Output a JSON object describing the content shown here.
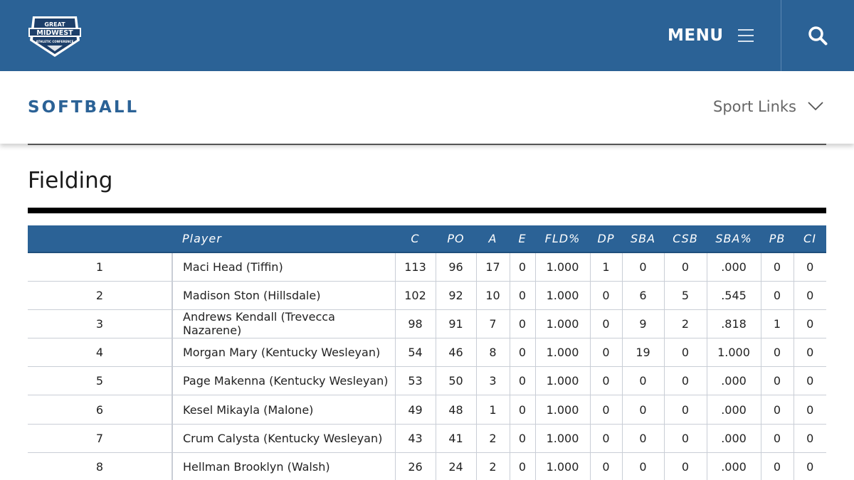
{
  "header": {
    "logo_text": [
      "GREAT",
      "MIDWEST",
      "ATHLETIC CONFERENCE"
    ],
    "menu_label": "MENU",
    "colors": {
      "brand": "#2b6296",
      "accent": "#1f4f7c"
    }
  },
  "subheader": {
    "sport_title": "SOFTBALL",
    "sport_links_label": "Sport Links"
  },
  "section": {
    "title": "Fielding"
  },
  "table": {
    "columns": [
      "",
      "Player",
      "C",
      "PO",
      "A",
      "E",
      "FLD%",
      "DP",
      "SBA",
      "CSB",
      "SBA%",
      "PB",
      "CI"
    ],
    "rows": [
      [
        "1",
        "Maci Head (Tiffin)",
        "113",
        "96",
        "17",
        "0",
        "1.000",
        "1",
        "0",
        "0",
        ".000",
        "0",
        "0"
      ],
      [
        "2",
        "Madison Ston (Hillsdale)",
        "102",
        "92",
        "10",
        "0",
        "1.000",
        "0",
        "6",
        "5",
        ".545",
        "0",
        "0"
      ],
      [
        "3",
        "Andrews Kendall (Trevecca Nazarene)",
        "98",
        "91",
        "7",
        "0",
        "1.000",
        "0",
        "9",
        "2",
        ".818",
        "1",
        "0"
      ],
      [
        "4",
        "Morgan Mary (Kentucky Wesleyan)",
        "54",
        "46",
        "8",
        "0",
        "1.000",
        "0",
        "19",
        "0",
        "1.000",
        "0",
        "0"
      ],
      [
        "5",
        "Page Makenna (Kentucky Wesleyan)",
        "53",
        "50",
        "3",
        "0",
        "1.000",
        "0",
        "0",
        "0",
        ".000",
        "0",
        "0"
      ],
      [
        "6",
        "Kesel Mikayla (Malone)",
        "49",
        "48",
        "1",
        "0",
        "1.000",
        "0",
        "0",
        "0",
        ".000",
        "0",
        "0"
      ],
      [
        "7",
        "Crum Calysta (Kentucky Wesleyan)",
        "43",
        "41",
        "2",
        "0",
        "1.000",
        "0",
        "0",
        "0",
        ".000",
        "0",
        "0"
      ],
      [
        "8",
        "Hellman Brooklyn (Walsh)",
        "26",
        "24",
        "2",
        "0",
        "1.000",
        "0",
        "0",
        "0",
        ".000",
        "0",
        "0"
      ]
    ]
  }
}
